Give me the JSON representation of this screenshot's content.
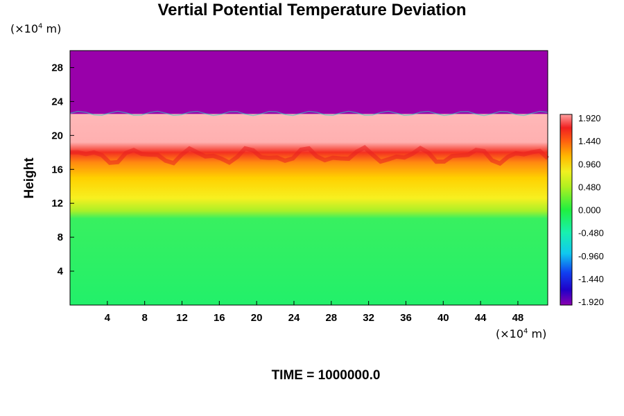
{
  "chart_data": {
    "type": "heatmap",
    "title": "Vertial Potential Temperature Deviation",
    "ylabel": "Height",
    "x_unit": "(×10",
    "x_unit_exp": "4",
    "x_unit_tail": " m)",
    "y_unit": "(×10",
    "y_unit_exp": "4",
    "y_unit_tail": " m)",
    "xlim": [
      0,
      51.2
    ],
    "ylim": [
      0,
      30
    ],
    "xticks": [
      4,
      8,
      12,
      16,
      20,
      24,
      28,
      32,
      36,
      40,
      44,
      48
    ],
    "yticks": [
      4,
      8,
      12,
      16,
      20,
      24,
      28
    ],
    "colorbar": {
      "min": -1.92,
      "max": 1.92,
      "tick_labels": [
        "1.920",
        "1.440",
        "0.960",
        "0.480",
        "0.000",
        "-0.480",
        "-0.960",
        "-1.440",
        "-1.920"
      ]
    },
    "layers": [
      {
        "from": 0,
        "to": 11,
        "description_value": 0.0
      },
      {
        "from": 11,
        "to": 18,
        "description_value": 1.2
      },
      {
        "from": 18,
        "to": 22.5,
        "description_value": 1.92
      },
      {
        "from": 22.5,
        "to": 30,
        "description_value": -1.92
      }
    ],
    "footer": "TIME = 1000000.0"
  }
}
